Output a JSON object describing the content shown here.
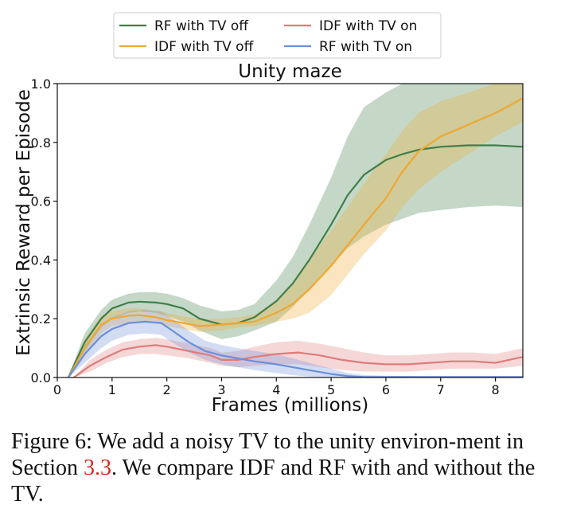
{
  "chart_data": {
    "type": "line",
    "title": "Unity maze",
    "xlabel": "Frames (millions)",
    "ylabel": "Extrinsic Reward per Episode",
    "xlim": [
      0,
      8.5
    ],
    "ylim": [
      0,
      1.0
    ],
    "xticks": [
      "0",
      "1",
      "2",
      "3",
      "4",
      "5",
      "6",
      "7",
      "8"
    ],
    "yticks": [
      "0.0",
      "0.2",
      "0.4",
      "0.6",
      "0.8",
      "1.0"
    ],
    "grid": false,
    "legend_position": "top, outside",
    "series": [
      {
        "name": "RF with TV off",
        "color": "#3f7f4a",
        "x": [
          0.2,
          0.5,
          0.8,
          1.0,
          1.3,
          1.5,
          1.8,
          2.0,
          2.3,
          2.6,
          3.0,
          3.3,
          3.6,
          4.0,
          4.3,
          4.6,
          5.0,
          5.3,
          5.6,
          6.0,
          6.3,
          6.6,
          7.0,
          7.5,
          8.0,
          8.5
        ],
        "y": [
          0.0,
          0.12,
          0.2,
          0.235,
          0.255,
          0.258,
          0.255,
          0.25,
          0.235,
          0.2,
          0.18,
          0.185,
          0.205,
          0.26,
          0.32,
          0.4,
          0.52,
          0.62,
          0.69,
          0.74,
          0.76,
          0.775,
          0.785,
          0.79,
          0.79,
          0.785
        ],
        "band_lower": [
          0.0,
          0.09,
          0.17,
          0.2,
          0.22,
          0.225,
          0.22,
          0.21,
          0.19,
          0.16,
          0.13,
          0.14,
          0.16,
          0.19,
          0.24,
          0.3,
          0.38,
          0.44,
          0.48,
          0.52,
          0.54,
          0.56,
          0.57,
          0.58,
          0.585,
          0.58
        ],
        "band_upper": [
          0.0,
          0.15,
          0.23,
          0.265,
          0.285,
          0.29,
          0.29,
          0.285,
          0.27,
          0.245,
          0.225,
          0.23,
          0.25,
          0.33,
          0.41,
          0.52,
          0.68,
          0.82,
          0.92,
          0.97,
          1.0,
          1.0,
          1.0,
          1.0,
          1.0,
          1.0
        ]
      },
      {
        "name": "IDF with TV off",
        "color": "#f0a830",
        "x": [
          0.2,
          0.5,
          0.8,
          1.0,
          1.3,
          1.5,
          1.8,
          2.0,
          2.3,
          2.6,
          3.0,
          3.3,
          3.6,
          4.0,
          4.3,
          4.6,
          5.0,
          5.3,
          5.6,
          6.0,
          6.3,
          6.6,
          7.0,
          7.5,
          8.0,
          8.5
        ],
        "y": [
          0.0,
          0.1,
          0.18,
          0.2,
          0.21,
          0.212,
          0.205,
          0.195,
          0.185,
          0.175,
          0.18,
          0.185,
          0.19,
          0.22,
          0.25,
          0.3,
          0.38,
          0.45,
          0.52,
          0.61,
          0.7,
          0.77,
          0.82,
          0.86,
          0.9,
          0.95
        ],
        "band_lower": [
          0.0,
          0.07,
          0.15,
          0.175,
          0.185,
          0.19,
          0.185,
          0.175,
          0.165,
          0.155,
          0.16,
          0.17,
          0.175,
          0.19,
          0.2,
          0.22,
          0.28,
          0.35,
          0.42,
          0.5,
          0.58,
          0.64,
          0.7,
          0.76,
          0.82,
          0.87
        ],
        "band_upper": [
          0.0,
          0.13,
          0.21,
          0.225,
          0.235,
          0.235,
          0.228,
          0.22,
          0.208,
          0.2,
          0.2,
          0.205,
          0.215,
          0.26,
          0.32,
          0.4,
          0.5,
          0.58,
          0.66,
          0.76,
          0.84,
          0.9,
          0.94,
          0.97,
          1.0,
          1.0
        ]
      },
      {
        "name": "IDF with TV on",
        "color": "#e07b7b",
        "x": [
          0.3,
          0.6,
          0.9,
          1.2,
          1.5,
          1.8,
          2.0,
          2.4,
          2.8,
          3.0,
          3.3,
          3.6,
          4.0,
          4.4,
          4.8,
          5.2,
          5.6,
          6.0,
          6.4,
          6.8,
          7.2,
          7.6,
          8.0,
          8.5
        ],
        "y": [
          0.0,
          0.04,
          0.07,
          0.095,
          0.105,
          0.11,
          0.105,
          0.09,
          0.075,
          0.06,
          0.06,
          0.07,
          0.08,
          0.085,
          0.075,
          0.06,
          0.05,
          0.045,
          0.045,
          0.05,
          0.055,
          0.055,
          0.05,
          0.07
        ],
        "band_lower": [
          0.0,
          0.02,
          0.05,
          0.07,
          0.08,
          0.08,
          0.075,
          0.065,
          0.05,
          0.04,
          0.035,
          0.04,
          0.045,
          0.045,
          0.035,
          0.025,
          0.02,
          0.02,
          0.02,
          0.025,
          0.03,
          0.03,
          0.03,
          0.04
        ],
        "band_upper": [
          0.0,
          0.06,
          0.095,
          0.12,
          0.13,
          0.135,
          0.13,
          0.115,
          0.1,
          0.085,
          0.09,
          0.105,
          0.12,
          0.125,
          0.115,
          0.1,
          0.085,
          0.075,
          0.075,
          0.08,
          0.085,
          0.085,
          0.08,
          0.1
        ]
      },
      {
        "name": "RF with TV on",
        "color": "#6a8fdc",
        "x": [
          0.2,
          0.5,
          0.8,
          1.0,
          1.3,
          1.6,
          1.9,
          2.1,
          2.4,
          2.7,
          3.0,
          3.3,
          3.6,
          4.0,
          4.3,
          4.6,
          5.0,
          5.3,
          5.6,
          6.0,
          6.5,
          7.0,
          7.5,
          8.0,
          8.5
        ],
        "y": [
          0.0,
          0.08,
          0.14,
          0.165,
          0.185,
          0.19,
          0.185,
          0.16,
          0.12,
          0.09,
          0.075,
          0.065,
          0.055,
          0.045,
          0.035,
          0.025,
          0.012,
          0.005,
          0.002,
          0.002,
          0.002,
          0.002,
          0.002,
          0.002,
          0.002
        ],
        "band_lower": [
          0.0,
          0.05,
          0.1,
          0.125,
          0.145,
          0.15,
          0.145,
          0.12,
          0.085,
          0.06,
          0.045,
          0.035,
          0.025,
          0.015,
          0.008,
          0.003,
          0.0,
          0.0,
          0.0,
          0.0,
          0.0,
          0.0,
          0.0,
          0.0,
          0.0
        ],
        "band_upper": [
          0.0,
          0.11,
          0.18,
          0.205,
          0.225,
          0.23,
          0.225,
          0.2,
          0.16,
          0.125,
          0.11,
          0.1,
          0.09,
          0.08,
          0.065,
          0.05,
          0.03,
          0.015,
          0.008,
          0.006,
          0.005,
          0.005,
          0.005,
          0.005,
          0.005
        ]
      }
    ]
  },
  "caption": {
    "text_before": "Figure 6: We add a noisy TV to the unity environ-ment in Section ",
    "ref": "3.3",
    "text_after": ". We compare IDF and RF with and without the TV."
  }
}
